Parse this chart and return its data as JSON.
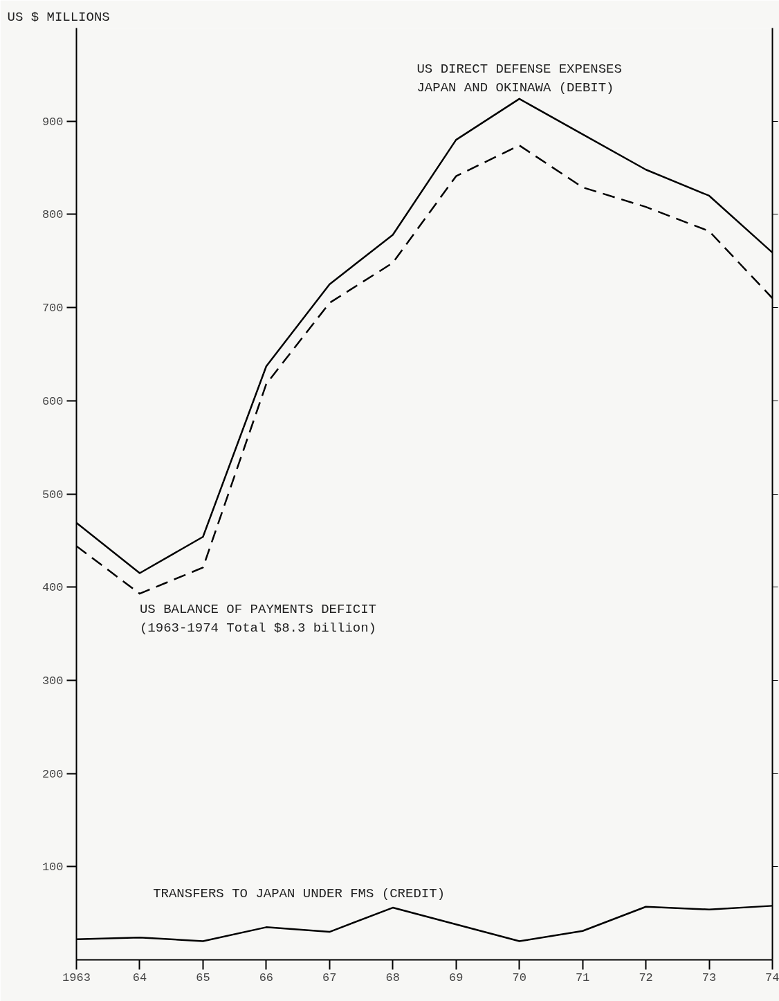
{
  "chart_data": {
    "type": "line",
    "ylabel": "US $ MILLIONS",
    "x": [
      1963,
      1964,
      1965,
      1966,
      1967,
      1968,
      1969,
      1970,
      1971,
      1972,
      1973,
      1974
    ],
    "xlim": [
      1963,
      1974
    ],
    "xticks": [
      {
        "value": 1963,
        "label": "1963"
      },
      {
        "value": 1964,
        "label": "64"
      },
      {
        "value": 1965,
        "label": "65"
      },
      {
        "value": 1966,
        "label": "66"
      },
      {
        "value": 1967,
        "label": "67"
      },
      {
        "value": 1968,
        "label": "68"
      },
      {
        "value": 1969,
        "label": "69"
      },
      {
        "value": 1970,
        "label": "70"
      },
      {
        "value": 1971,
        "label": "71"
      },
      {
        "value": 1972,
        "label": "72"
      },
      {
        "value": 1973,
        "label": "73"
      },
      {
        "value": 1974,
        "label": "74"
      }
    ],
    "ylim": [
      0,
      1000
    ],
    "yticks": [
      100,
      200,
      300,
      400,
      500,
      600,
      700,
      800,
      900
    ],
    "grid": false,
    "marker": "none",
    "series": [
      {
        "name": "US DIRECT DEFENSE EXPENSES\nJAPAN AND OKINAWA (DEBIT)",
        "color": "#000000",
        "line_style": "solid",
        "values": [
          469,
          415,
          454,
          637,
          725,
          778,
          880,
          924,
          886,
          848,
          820,
          759
        ]
      },
      {
        "name": "US BALANCE OF PAYMENTS DEFICIT\n(1963-1974 Total $8.3 billion)",
        "color": "#000000",
        "line_style": "dashed",
        "values": [
          444,
          393,
          421,
          618,
          705,
          748,
          841,
          874,
          829,
          808,
          782,
          710
        ]
      },
      {
        "name": "TRANSFERS TO JAPAN UNDER FMS (CREDIT)",
        "color": "#000000",
        "line_style": "solid",
        "values": [
          22,
          24,
          20,
          35,
          30,
          56,
          38,
          20,
          31,
          57,
          54,
          58
        ]
      }
    ]
  }
}
